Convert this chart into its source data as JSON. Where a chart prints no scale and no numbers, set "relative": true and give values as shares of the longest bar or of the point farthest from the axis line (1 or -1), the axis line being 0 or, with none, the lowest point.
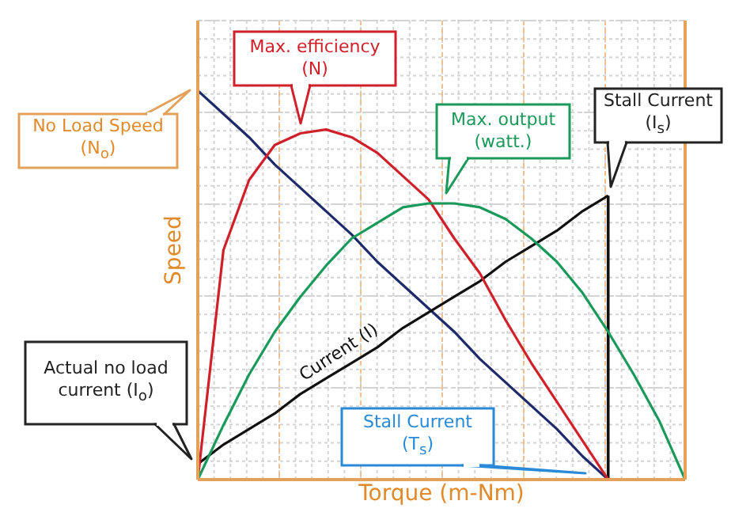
{
  "chart_data": {
    "type": "line",
    "relative": true,
    "xlabel": "Torque (m-Nm)",
    "ylabel": "Speed",
    "grid": true,
    "marker": "none",
    "line_style": "solid",
    "categories": [
      null,
      null,
      null,
      null,
      null,
      null,
      null,
      null,
      null,
      null,
      null,
      null,
      null,
      null,
      null,
      null,
      null,
      null,
      null,
      null
    ],
    "series": [
      {
        "color": "#1f2a6b",
        "values": [
          1,
          0.94,
          0.88,
          0.81,
          0.75,
          0.69,
          0.63,
          0.56,
          0.5,
          0.44,
          0.38,
          0.31,
          0.25,
          0.19,
          0.13,
          0.06,
          0,
          null,
          null,
          null
        ]
      },
      {
        "name": "Current (I)",
        "color": "#111111",
        "values": [
          0.04,
          0.09,
          0.13,
          0.17,
          0.22,
          0.26,
          0.3,
          0.34,
          0.39,
          0.43,
          0.47,
          0.51,
          0.56,
          0.6,
          0.64,
          0.69,
          0.73,
          null,
          null,
          null
        ]
      },
      {
        "color": "#d0202a",
        "values": [
          0,
          0.59,
          0.77,
          0.86,
          0.89,
          0.9,
          0.88,
          0.84,
          0.78,
          0.72,
          0.62,
          0.53,
          0.41,
          0.3,
          0.2,
          0.1,
          0,
          null,
          null,
          null
        ]
      },
      {
        "color": "#1a9a5a",
        "values": [
          0,
          0.14,
          0.27,
          0.38,
          0.47,
          0.55,
          0.62,
          0.66,
          0.7,
          0.71,
          0.71,
          0.7,
          0.67,
          0.62,
          0.56,
          0.48,
          0.38,
          0.27,
          0.15,
          0
        ]
      }
    ],
    "annotations": [
      "No Load Speed (N$_{o}$)",
      "Max. efficiency (N)",
      "Max. output (watt.)",
      "Stall Current (I$_{s}$)",
      "Actual no load current (I$_{o}$)",
      "Stall Current (T$_{s}$)"
    ]
  }
}
